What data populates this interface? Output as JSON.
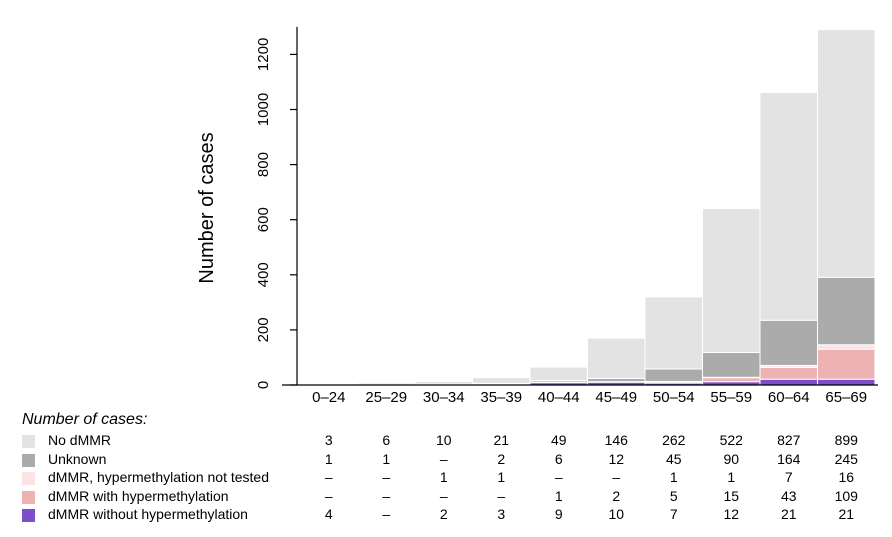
{
  "chart_data": {
    "type": "bar",
    "stacked": true,
    "ylabel": "Number of cases",
    "ylim": [
      0,
      1300
    ],
    "yticks": [
      0,
      200,
      400,
      600,
      800,
      1000,
      1200
    ],
    "categories": [
      "0–24",
      "25–29",
      "30–34",
      "35–39",
      "40–44",
      "45–49",
      "50–54",
      "55–59",
      "60–64",
      "65–69"
    ],
    "series": [
      {
        "name": "dMMR without hypermethylation",
        "color": "#7b4fc9",
        "values": [
          4,
          0,
          2,
          3,
          9,
          10,
          7,
          12,
          21,
          21
        ]
      },
      {
        "name": "dMMR with hypermethylation",
        "color": "#edb3b3",
        "values": [
          0,
          0,
          0,
          0,
          1,
          2,
          5,
          15,
          43,
          109
        ]
      },
      {
        "name": "dMMR, hypermethylation not tested",
        "color": "#fde3e3",
        "values": [
          0,
          0,
          1,
          1,
          0,
          0,
          1,
          1,
          7,
          16
        ]
      },
      {
        "name": "Unknown",
        "color": "#ababab",
        "values": [
          1,
          1,
          0,
          2,
          6,
          12,
          45,
          90,
          164,
          245
        ]
      },
      {
        "name": "No dMMR",
        "color": "#e3e3e3",
        "values": [
          3,
          6,
          10,
          21,
          49,
          146,
          262,
          522,
          827,
          899
        ]
      }
    ]
  },
  "table": {
    "title": "Number of cases:",
    "rows": [
      {
        "label": "No dMMR",
        "color": "#e3e3e3",
        "cells": [
          "3",
          "6",
          "10",
          "21",
          "49",
          "146",
          "262",
          "522",
          "827",
          "899"
        ]
      },
      {
        "label": "Unknown",
        "color": "#ababab",
        "cells": [
          "1",
          "1",
          "–",
          "2",
          "6",
          "12",
          "45",
          "90",
          "164",
          "245"
        ]
      },
      {
        "label": "dMMR, hypermethylation not tested",
        "color": "#fde3e3",
        "cells": [
          "–",
          "–",
          "1",
          "1",
          "–",
          "–",
          "1",
          "1",
          "7",
          "16"
        ]
      },
      {
        "label": "dMMR with hypermethylation",
        "color": "#edb3b3",
        "cells": [
          "–",
          "–",
          "–",
          "–",
          "1",
          "2",
          "5",
          "15",
          "43",
          "109"
        ]
      },
      {
        "label": "dMMR without hypermethylation",
        "color": "#7b4fc9",
        "cells": [
          "4",
          "–",
          "2",
          "3",
          "9",
          "10",
          "7",
          "12",
          "21",
          "21"
        ]
      }
    ]
  }
}
